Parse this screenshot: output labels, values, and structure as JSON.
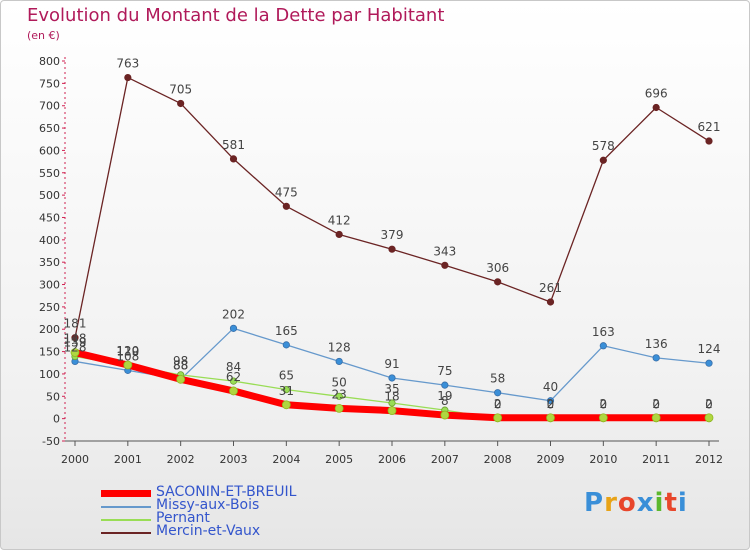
{
  "title": "Evolution du Montant de la Dette par Habitant",
  "subtitle": "(en €)",
  "logo": {
    "text": "Proxiti",
    "letter_colors": [
      "#3a8fd8",
      "#e8a317",
      "#e8462b",
      "#3a8fd8",
      "#5cb82e",
      "#e8462b",
      "#3a8fd8"
    ]
  },
  "legend": [
    {
      "name": "SACONIN-ET-BREUIL",
      "color": "#ff0000"
    },
    {
      "name": "Missy-aux-Bois",
      "color": "#6699cc"
    },
    {
      "name": "Pernant",
      "color": "#99dd55"
    },
    {
      "name": "Mercin-et-Vaux",
      "color": "#6b2424"
    }
  ],
  "chart_data": {
    "type": "line",
    "title": "Evolution du Montant de la Dette par Habitant",
    "subtitle": "(en €)",
    "x": [
      "2000",
      "2001",
      "2002",
      "2003",
      "2004",
      "2005",
      "2006",
      "2007",
      "2008",
      "2009",
      "2010",
      "2011",
      "2012"
    ],
    "ylim": [
      -50,
      800
    ],
    "yticks": [
      -50,
      0,
      50,
      100,
      150,
      200,
      250,
      300,
      350,
      400,
      450,
      500,
      550,
      600,
      650,
      700,
      750,
      800
    ],
    "grid": false,
    "legend_position": "bottom-left",
    "series": [
      {
        "name": "Mercin-et-Vaux",
        "color": "#6b2424",
        "marker_fill": "#6b2424",
        "values": [
          181,
          763,
          705,
          581,
          475,
          412,
          379,
          343,
          306,
          261,
          578,
          696,
          621
        ],
        "labels": [
          "181",
          "763",
          "705",
          "581",
          "475",
          "412",
          "379",
          "343",
          "306",
          "261",
          "578",
          "696",
          "621"
        ]
      },
      {
        "name": "Missy-aux-Bois",
        "color": "#6699cc",
        "marker_fill": "#3a8fd8",
        "values": [
          128,
          108,
          88,
          202,
          165,
          128,
          91,
          75,
          58,
          40,
          163,
          136,
          124
        ],
        "labels": [
          "128",
          "108",
          "88",
          "202",
          "165",
          "128",
          "91",
          "75",
          "58",
          "40",
          "163",
          "136",
          "124"
        ]
      },
      {
        "name": "Pernant",
        "color": "#99dd55",
        "marker_fill": "#99dd55",
        "values": [
          139,
          119,
          98,
          84,
          65,
          50,
          35,
          19,
          0,
          0,
          0,
          0,
          0
        ],
        "labels": [
          "139",
          "119",
          "98",
          "84",
          "65",
          "50",
          "35",
          "19",
          "0",
          "0",
          "0",
          "0",
          "0"
        ]
      },
      {
        "name": "SACONIN-ET-BREUIL",
        "color": "#ff0000",
        "marker_fill": "#b0d640",
        "values": [
          148,
          120,
          88,
          62,
          31,
          23,
          18,
          8,
          2,
          2,
          2,
          2,
          2
        ],
        "labels": [
          "148",
          "120",
          "88",
          "62",
          "31",
          "23",
          "18",
          "8",
          "2",
          "2",
          "2",
          "2",
          "2"
        ]
      }
    ]
  }
}
